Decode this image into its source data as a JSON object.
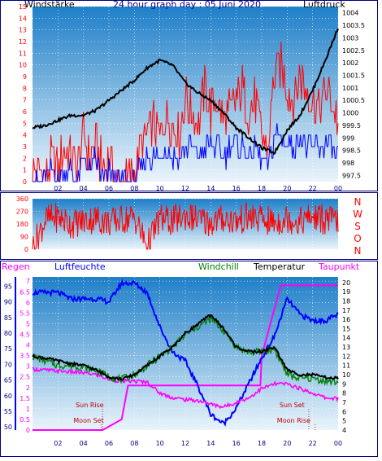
{
  "title": "24 hour graph day : 05 Juni 2020",
  "colors": {
    "wind": "#ff0000",
    "gust": "#0000ff",
    "pressure": "#000000",
    "temperature": "#000000",
    "windchill": "#008000",
    "humidity": "#0000ff",
    "dewpoint": "#ff00ff",
    "rain": "#ff00ff",
    "direction": "#ff0000",
    "plot_top": "#1e7fc8",
    "plot_bottom": "#eaf4fb"
  },
  "chart_data": [
    {
      "type": "line",
      "name": "wind-pressure",
      "left_label": "Windstärke",
      "right_label": "Luftdruck",
      "x_ticks": [
        "02",
        "04",
        "06",
        "08",
        "10",
        "12",
        "14",
        "16",
        "18",
        "20",
        "22",
        "00"
      ],
      "y_left_ticks": [
        "0",
        "1",
        "2",
        "3",
        "4",
        "5",
        "6",
        "7",
        "8",
        "9",
        "10",
        "11",
        "12",
        "13",
        "14",
        "15"
      ],
      "y_left_range": [
        0,
        15
      ],
      "y_right_ticks": [
        "997.5",
        "998",
        "998.5",
        "999",
        "999.5",
        "1000",
        "1000.5",
        "1001",
        "1001.5",
        "1002",
        "1002.5",
        "1003",
        "1003.5",
        "1004"
      ],
      "y_right_range": [
        997.25,
        1004.25
      ],
      "x_range": [
        0,
        24
      ],
      "series": [
        {
          "role": "wind",
          "x": [
            0,
            0.5,
            1,
            1.5,
            2,
            2.5,
            3,
            3.5,
            4,
            4.5,
            5,
            5.5,
            6,
            6.5,
            7,
            7.5,
            8,
            8.5,
            9,
            9.5,
            10,
            10.5,
            11,
            11.5,
            12,
            12.5,
            13,
            13.5,
            14,
            14.5,
            15,
            15.5,
            16,
            16.5,
            17,
            17.5,
            18,
            18.5,
            19,
            19.5,
            20,
            20.5,
            21,
            21.5,
            22,
            22.5,
            23,
            23.5,
            24
          ],
          "values": [
            1,
            1,
            0,
            2,
            1,
            3,
            2,
            1,
            4,
            2,
            3,
            1,
            2,
            0,
            0,
            0,
            1,
            3,
            4,
            5,
            4,
            6,
            5,
            4,
            7,
            6,
            5,
            8,
            6,
            7,
            5,
            6,
            7,
            8,
            6,
            7,
            4,
            3,
            9,
            10,
            8,
            7,
            9,
            8,
            7,
            6,
            8,
            7,
            5
          ]
        },
        {
          "role": "gust",
          "x": [
            0,
            0.5,
            1,
            1.5,
            2,
            2.5,
            3,
            3.5,
            4,
            4.5,
            5,
            5.5,
            6,
            6.5,
            7,
            7.5,
            8,
            8.5,
            9,
            9.5,
            10,
            10.5,
            11,
            11.5,
            12,
            12.5,
            13,
            13.5,
            14,
            14.5,
            15,
            15.5,
            16,
            16.5,
            17,
            17.5,
            18,
            18.5,
            19,
            19.5,
            20,
            20.5,
            21,
            21.5,
            22,
            22.5,
            23,
            23.5,
            24
          ],
          "values": [
            0,
            0,
            0,
            1,
            0,
            1,
            1,
            0,
            2,
            1,
            2,
            0,
            1,
            0,
            0,
            0,
            0,
            1,
            2,
            2,
            2,
            3,
            2,
            2,
            3,
            3,
            2,
            3,
            3,
            3,
            2,
            3,
            3,
            3,
            2,
            3,
            2,
            1,
            4,
            4,
            3,
            3,
            4,
            3,
            3,
            3,
            3,
            3,
            2
          ]
        },
        {
          "role": "pressure",
          "x": [
            0,
            1,
            2,
            3,
            4,
            5,
            6,
            7,
            8,
            9,
            10,
            11,
            12,
            13,
            14,
            15,
            16,
            17,
            18,
            19,
            20,
            21,
            22,
            23,
            24
          ],
          "values": [
            999.4,
            999.5,
            999.7,
            999.9,
            999.9,
            1000.1,
            1000.5,
            1000.9,
            1001.3,
            1001.8,
            1002.1,
            1001.9,
            1001.2,
            1000.8,
            1000.5,
            1000.0,
            999.4,
            999.0,
            998.6,
            998.4,
            999.3,
            999.9,
            1000.9,
            1002.1,
            1003.4
          ]
        }
      ]
    },
    {
      "type": "line",
      "name": "wind-direction",
      "right_label": "NWSON",
      "right_letters": [
        "N",
        "W",
        "S",
        "O",
        "N"
      ],
      "y_left_ticks": [
        "0",
        "90",
        "180",
        "270",
        "360"
      ],
      "y_range": [
        0,
        360
      ],
      "x_range": [
        0,
        24
      ],
      "series": [
        {
          "role": "direction",
          "x": [
            0,
            1,
            2,
            3,
            4,
            5,
            6,
            7,
            8,
            9,
            10,
            11,
            12,
            13,
            14,
            15,
            16,
            17,
            18,
            19,
            20,
            21,
            22,
            23,
            24
          ],
          "values": [
            10,
            210,
            230,
            180,
            200,
            220,
            190,
            210,
            230,
            20,
            220,
            200,
            240,
            210,
            190,
            220,
            200,
            230,
            210,
            190,
            220,
            200,
            230,
            210,
            200
          ]
        }
      ]
    },
    {
      "type": "line",
      "name": "temp-humidity",
      "labels": {
        "rain": "Regen",
        "humidity": "Luftfeuchte",
        "windchill": "Windchill",
        "temperature": "Temperatur",
        "dewpoint": "Taupunkt"
      },
      "x_ticks": [
        "02",
        "04",
        "06",
        "08",
        "10",
        "12",
        "14",
        "16",
        "18",
        "20",
        "22",
        "00"
      ],
      "y_humidity_ticks": [
        "50",
        "55",
        "60",
        "65",
        "70",
        "75",
        "80",
        "85",
        "90",
        "95"
      ],
      "y_humidity_range": [
        49,
        98
      ],
      "y_rain_ticks": [
        "0",
        "0.5",
        "1",
        "1.5",
        "2",
        "2.5",
        "3",
        "3.5",
        "4",
        "4.5",
        "5",
        "5.5",
        "6",
        "6.5",
        "7"
      ],
      "y_rain_range": [
        0,
        7.2
      ],
      "y_temp_ticks": [
        "4",
        "5",
        "6",
        "7",
        "8",
        "9",
        "10",
        "11",
        "12",
        "13",
        "14",
        "15",
        "16",
        "17",
        "18",
        "19",
        "20"
      ],
      "y_temp_range": [
        4,
        20.6
      ],
      "x_range": [
        0,
        24
      ],
      "annotations": [
        "Sun Rise",
        "Moon Set",
        "Sun Set",
        "Moon Rise"
      ],
      "series": [
        {
          "role": "humidity",
          "x": [
            0,
            1,
            2,
            3,
            4,
            5,
            6,
            7,
            8,
            9,
            10,
            11,
            12,
            13,
            14,
            15,
            16,
            17,
            18,
            19,
            20,
            21,
            22,
            23,
            24
          ],
          "values": [
            93,
            93,
            93,
            91,
            91,
            91,
            90,
            96,
            96,
            93,
            82,
            74,
            71,
            63,
            54,
            51,
            56,
            64,
            72,
            79,
            91,
            86,
            84,
            84,
            86
          ]
        },
        {
          "role": "temperature",
          "x": [
            0,
            1,
            2,
            3,
            4,
            5,
            6,
            7,
            8,
            9,
            10,
            11,
            12,
            13,
            14,
            15,
            16,
            17,
            18,
            19,
            20,
            21,
            22,
            23,
            24
          ],
          "values": [
            12,
            11.8,
            11.5,
            11.2,
            11,
            10.5,
            9.8,
            9.5,
            10,
            11,
            12,
            13,
            14.5,
            15.5,
            16.5,
            15,
            13,
            12.5,
            12.5,
            13,
            10.5,
            10,
            10,
            9.7,
            9.6
          ]
        },
        {
          "role": "windchill",
          "x": [
            0,
            1,
            2,
            3,
            4,
            5,
            6,
            7,
            8,
            9,
            10,
            11,
            12,
            13,
            14,
            15,
            16,
            17,
            18,
            19,
            20,
            21,
            22,
            23,
            24
          ],
          "values": [
            12,
            11.5,
            11,
            11,
            10.8,
            10.5,
            9.8,
            9.5,
            10,
            11,
            12,
            13,
            14.3,
            15.2,
            16,
            14.8,
            13,
            12.4,
            12.5,
            12.8,
            10,
            9.6,
            9.6,
            9.3,
            9.2
          ]
        },
        {
          "role": "dewpoint",
          "x": [
            0,
            1,
            2,
            3,
            4,
            5,
            6,
            7,
            8,
            9,
            10,
            11,
            12,
            13,
            14,
            15,
            16,
            17,
            18,
            19,
            20,
            21,
            22,
            23,
            24
          ],
          "values": [
            10.6,
            10.5,
            10.4,
            10.3,
            10.2,
            10,
            9.5,
            9.3,
            9.3,
            9.2,
            8,
            7.5,
            7.3,
            7.2,
            6.8,
            6.5,
            7,
            7.5,
            8.5,
            9,
            9,
            8.5,
            8,
            7.5,
            7.4
          ]
        },
        {
          "role": "rain",
          "x": [
            0,
            4.5,
            5.5,
            7,
            7.5,
            11,
            17.9,
            18,
            19.5,
            24
          ],
          "values": [
            0,
            0,
            0,
            0.5,
            2.1,
            2.1,
            2.1,
            3.5,
            6.8,
            6.8
          ]
        }
      ]
    }
  ]
}
